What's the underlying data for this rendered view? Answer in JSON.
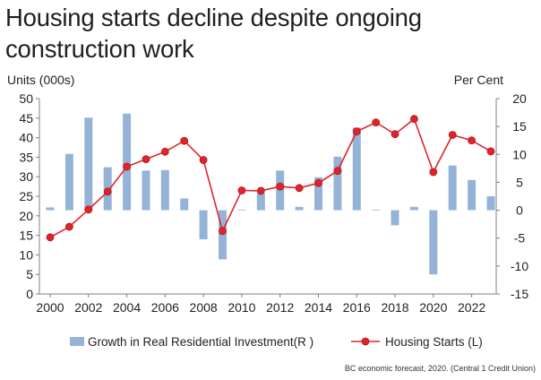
{
  "title": "Housing starts decline despite ongoing construction work",
  "source": "BC economic forecast, 2020. (Central 1 Credit Union)",
  "chart_data": {
    "type": "bar+line",
    "left_axis_label": "Units (000s)",
    "right_axis_label": "Per Cent",
    "x_ticks": [
      "2000",
      "2002",
      "2004",
      "2006",
      "2008",
      "2010",
      "2012",
      "2014",
      "2016",
      "2018",
      "2020",
      "2022"
    ],
    "y_left_ticks": [
      "0",
      "5",
      "10",
      "15",
      "20",
      "25",
      "30",
      "35",
      "40",
      "45",
      "50"
    ],
    "y_right_ticks": [
      "-15",
      "-10",
      "-5",
      "0",
      "5",
      "10",
      "15",
      "20"
    ],
    "ylim_left": [
      0,
      50
    ],
    "ylim_right": [
      -15,
      20
    ],
    "years": [
      2000,
      2001,
      2002,
      2003,
      2004,
      2005,
      2006,
      2007,
      2008,
      2009,
      2010,
      2011,
      2012,
      2013,
      2014,
      2015,
      2016,
      2017,
      2018,
      2019,
      2020,
      2021,
      2022,
      2023
    ],
    "series": [
      {
        "name": "Growth in Real Residential Investment(R )",
        "type": "bar",
        "axis": "right",
        "color": "#95b3d7",
        "values": [
          0.5,
          10.1,
          16.6,
          7.7,
          17.3,
          7.1,
          7.2,
          2.1,
          -5.2,
          -8.8,
          0.1,
          3.1,
          7.1,
          0.6,
          5.9,
          9.6,
          14.8,
          0.1,
          -2.7,
          0.6,
          -11.5,
          8.0,
          5.4,
          2.5
        ]
      },
      {
        "name": "Housing Starts (L)",
        "type": "line",
        "axis": "left",
        "color": "#e0242b",
        "values": [
          14.5,
          17.2,
          21.6,
          26.2,
          32.6,
          34.5,
          36.4,
          39.2,
          34.3,
          16.1,
          26.5,
          26.4,
          27.5,
          27.1,
          28.4,
          31.5,
          41.6,
          43.9,
          40.9,
          44.8,
          31.2,
          40.7,
          39.3,
          36.5
        ]
      }
    ],
    "legend_position": "bottom",
    "grid": false
  }
}
